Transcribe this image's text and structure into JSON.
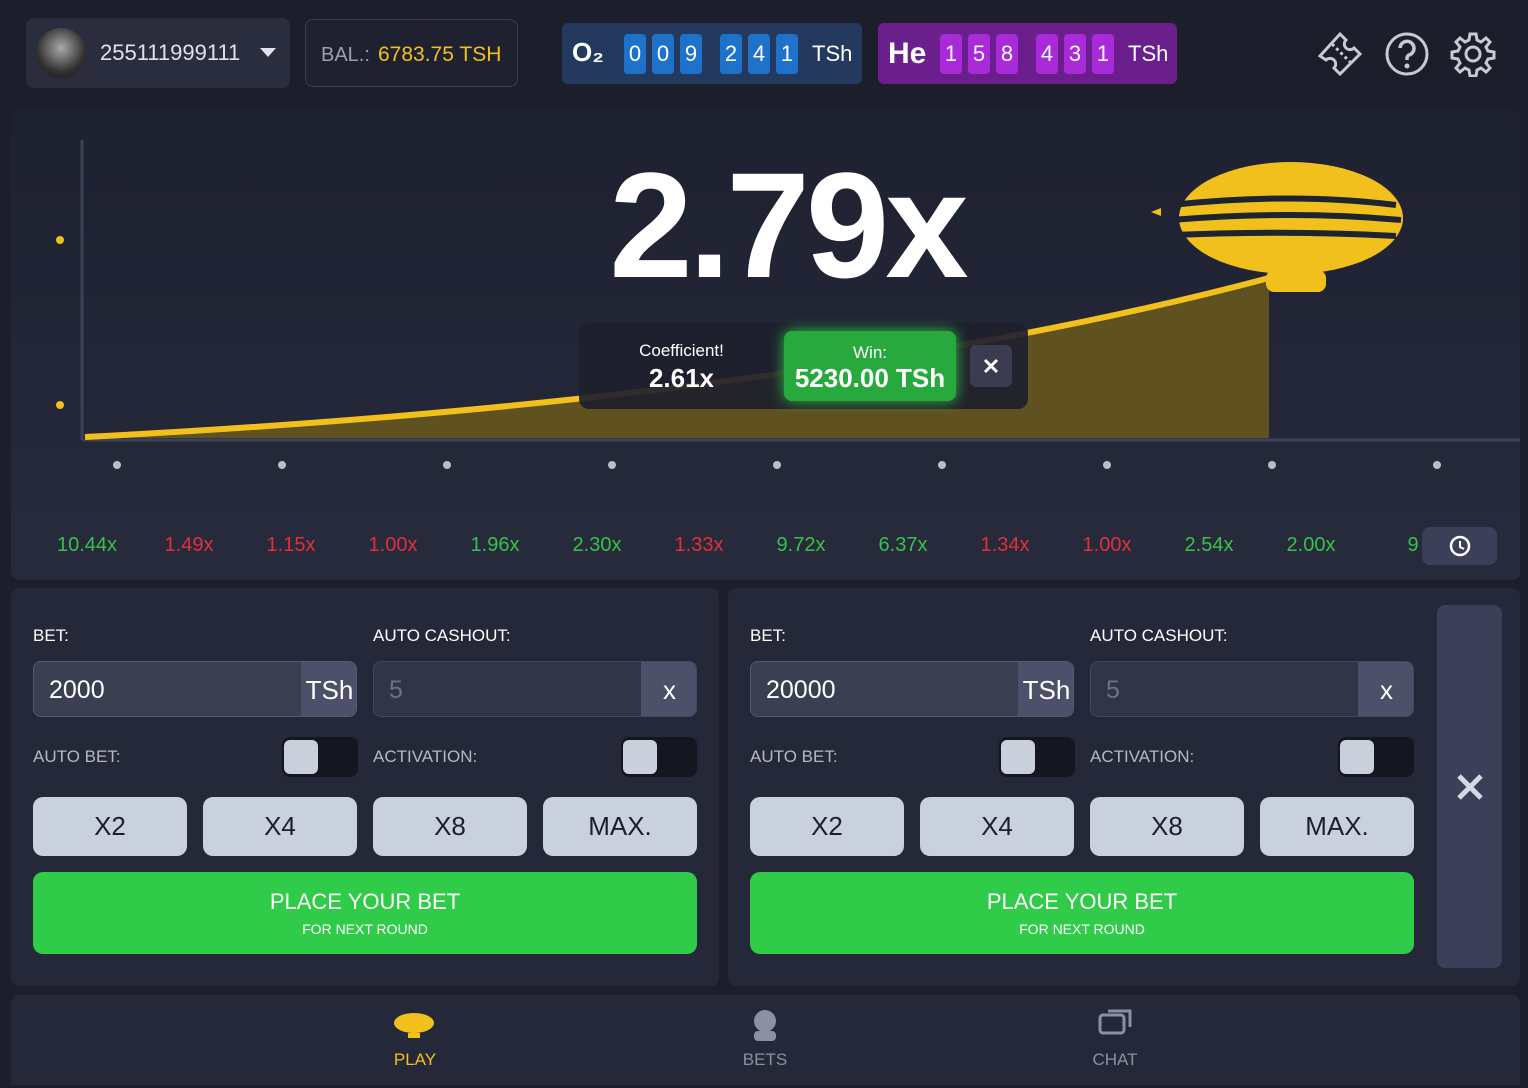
{
  "header": {
    "username": "255111999111",
    "balance_label": "BAL.:",
    "balance": "6783.75 TSH",
    "jackpots": [
      {
        "symbol": "O₂",
        "digits": [
          "0",
          "0",
          "9",
          "2",
          "4",
          "1"
        ],
        "currency": "TSh",
        "color": "#23395d",
        "digit_color": "#1f72c9"
      },
      {
        "symbol": "He",
        "digits": [
          "1",
          "5",
          "8",
          "4",
          "3",
          "1"
        ],
        "currency": "TSh",
        "color": "#6a1f8c",
        "digit_color": "#a82ad8"
      }
    ]
  },
  "game": {
    "multiplier": "2.79x",
    "cashout": {
      "coefficient_label": "Coefficient!",
      "coefficient": "2.61x",
      "win_label": "Win:",
      "win": "5230.00 TSh"
    }
  },
  "history": [
    {
      "value": "10.44x",
      "color": "#36c24a"
    },
    {
      "value": "1.49x",
      "color": "#e2303a"
    },
    {
      "value": "1.15x",
      "color": "#e2303a"
    },
    {
      "value": "1.00x",
      "color": "#e2303a"
    },
    {
      "value": "1.96x",
      "color": "#36c24a"
    },
    {
      "value": "2.30x",
      "color": "#36c24a"
    },
    {
      "value": "1.33x",
      "color": "#e2303a"
    },
    {
      "value": "9.72x",
      "color": "#36c24a"
    },
    {
      "value": "6.37x",
      "color": "#36c24a"
    },
    {
      "value": "1.34x",
      "color": "#e2303a"
    },
    {
      "value": "1.00x",
      "color": "#e2303a"
    },
    {
      "value": "2.54x",
      "color": "#36c24a"
    },
    {
      "value": "2.00x",
      "color": "#36c24a"
    },
    {
      "value": "9",
      "color": "#36c24a"
    }
  ],
  "bet_panels": [
    {
      "bet_label": "BET:",
      "amount": "2000",
      "currency": "TSh",
      "auto_cashout_label": "AUTO CASHOUT:",
      "auto_cashout_placeholder": "5",
      "clear": "x",
      "auto_bet_label": "AUTO BET:",
      "activation_label": "ACTIVATION:",
      "quick_bets": [
        "X2",
        "X4",
        "X8",
        "MAX."
      ],
      "button_title": "PLACE YOUR BET",
      "button_subtitle": "FOR NEXT ROUND"
    },
    {
      "bet_label": "BET:",
      "amount": "20000",
      "currency": "TSh",
      "auto_cashout_label": "AUTO CASHOUT:",
      "auto_cashout_placeholder": "5",
      "clear": "x",
      "auto_bet_label": "AUTO BET:",
      "activation_label": "ACTIVATION:",
      "quick_bets": [
        "X2",
        "X4",
        "X8",
        "MAX."
      ],
      "button_title": "PLACE YOUR BET",
      "button_subtitle": "FOR NEXT ROUND"
    }
  ],
  "nav": {
    "tabs": [
      "PLAY",
      "BETS",
      "CHAT"
    ],
    "active": 0
  }
}
